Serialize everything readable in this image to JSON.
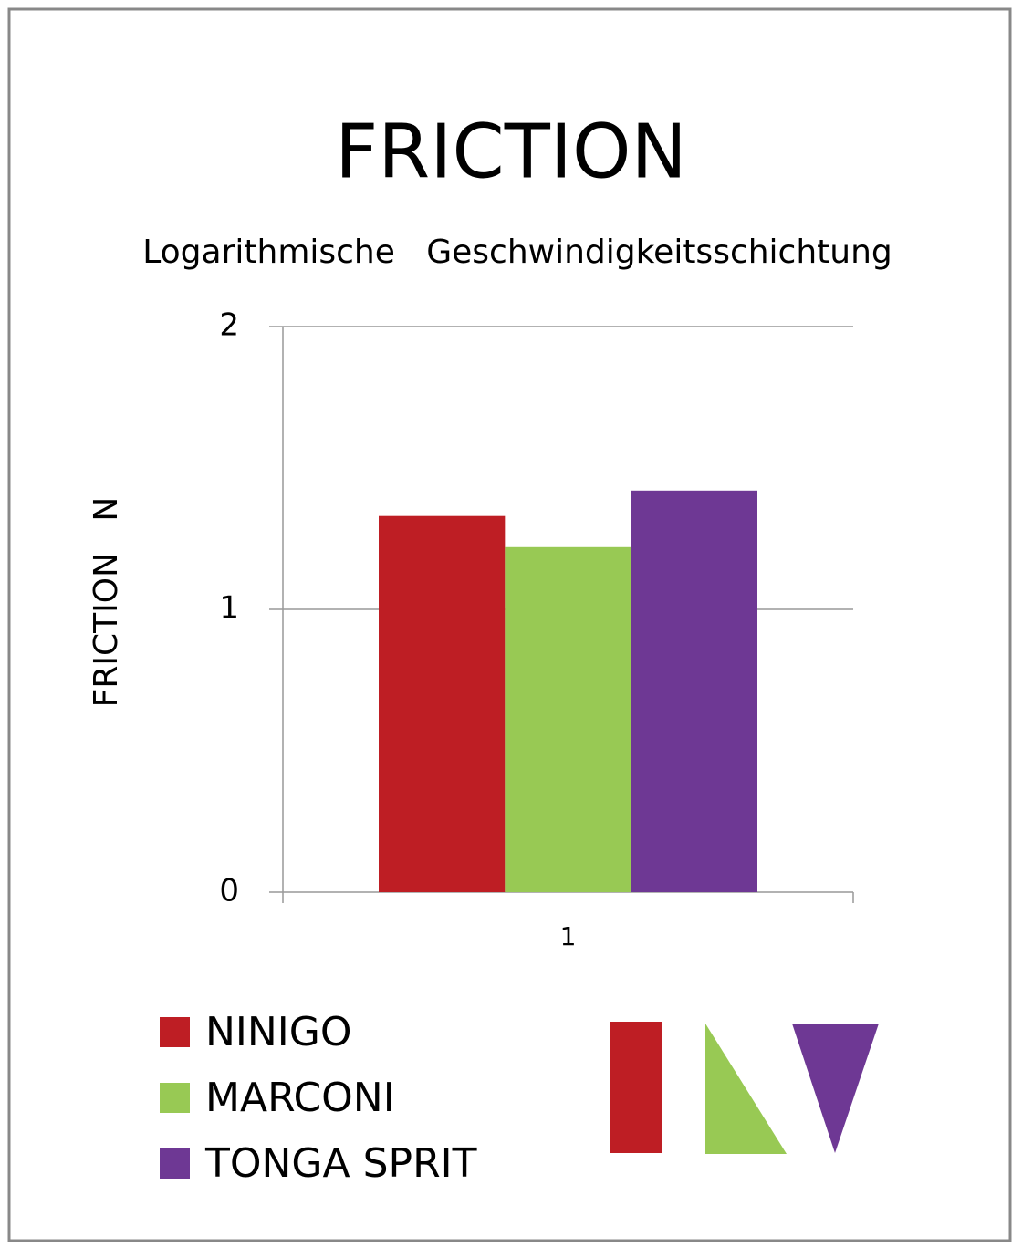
{
  "chart_data": {
    "type": "bar",
    "title": "FRICTION",
    "subtitle": "Logarithmische   Geschwindigkeitsschichtung",
    "y_label": "FRICTION   N",
    "categories": [
      "1"
    ],
    "series": [
      {
        "name": "NINIGO",
        "color": "#be1e24",
        "values": [
          1.33
        ]
      },
      {
        "name": "MARCONI",
        "color": "#98c954",
        "values": [
          1.22
        ]
      },
      {
        "name": "TONGA SPRIT",
        "color": "#6e3894",
        "values": [
          1.42
        ]
      }
    ],
    "ylim": [
      0,
      2
    ],
    "yticks": [
      0,
      1,
      2
    ],
    "grid": true
  }
}
